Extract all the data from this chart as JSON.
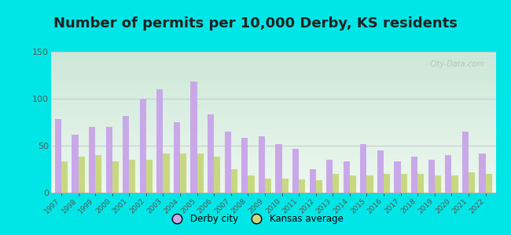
{
  "title": "Number of permits per 10,000 Derby, KS residents",
  "years": [
    1997,
    1998,
    1999,
    2000,
    2001,
    2002,
    2003,
    2004,
    2005,
    2006,
    2007,
    2008,
    2009,
    2010,
    2011,
    2012,
    2013,
    2014,
    2015,
    2016,
    2017,
    2018,
    2019,
    2020,
    2021,
    2022
  ],
  "derby": [
    78,
    62,
    70,
    70,
    82,
    100,
    110,
    75,
    118,
    83,
    65,
    58,
    60,
    52,
    47,
    25,
    35,
    33,
    52,
    45,
    33,
    38,
    35,
    40,
    65,
    42
  ],
  "kansas": [
    33,
    38,
    40,
    33,
    35,
    35,
    42,
    42,
    42,
    38,
    25,
    18,
    15,
    15,
    14,
    13,
    20,
    18,
    18,
    20,
    20,
    20,
    18,
    18,
    22,
    20
  ],
  "derby_color": "#c8a8e8",
  "kansas_color": "#c8d880",
  "background_color": "#00e5e5",
  "grad_top": "#cce8d8",
  "grad_bottom": "#eef8ee",
  "ylim": [
    0,
    150
  ],
  "yticks": [
    0,
    50,
    100,
    150
  ],
  "watermark": "City-Data.com",
  "legend_derby": "Derby city",
  "legend_kansas": "Kansas average",
  "title_fontsize": 13,
  "title_color": "#222222",
  "tick_color": "#555555",
  "bar_width": 0.38
}
